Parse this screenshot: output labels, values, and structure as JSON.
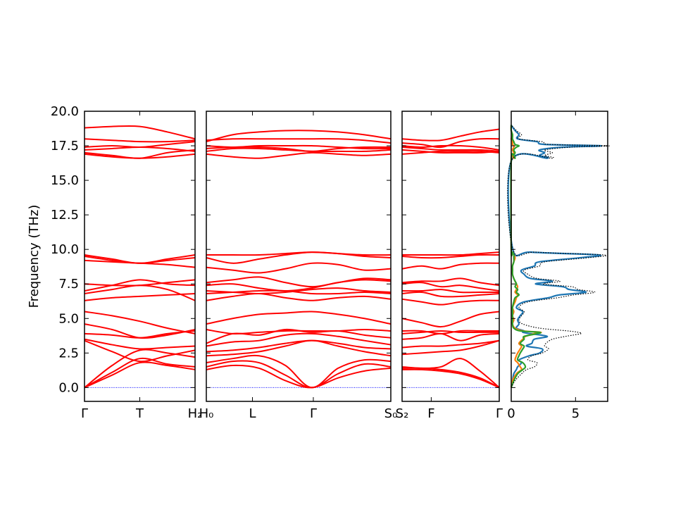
{
  "chart_data": [
    {
      "type": "line",
      "panel": "band-segment-1",
      "ylabel": "Frequency (THz)",
      "ylim": [
        -1.0,
        20.0
      ],
      "yticks": [
        "0.0",
        "2.5",
        "5.0",
        "7.5",
        "10.0",
        "12.5",
        "15.0",
        "17.5",
        "20.0"
      ],
      "xticklabels": [
        "Γ",
        "T",
        "H₂"
      ],
      "xtick_positions": [
        0,
        0.5,
        1
      ],
      "series": [
        {
          "values": [
            0.0,
            0.9,
            1.8,
            1.6,
            1.3
          ]
        },
        {
          "values": [
            0.0,
            1.1,
            2.1,
            1.7,
            1.5
          ]
        },
        {
          "values": [
            0.0,
            1.6,
            2.7,
            2.5,
            2.2
          ]
        },
        {
          "values": [
            3.4,
            2.6,
            1.9,
            2.3,
            2.7
          ]
        },
        {
          "values": [
            3.5,
            3.1,
            2.8,
            2.9,
            3.0
          ]
        },
        {
          "values": [
            3.9,
            3.8,
            3.6,
            3.9,
            4.1
          ]
        },
        {
          "values": [
            4.6,
            4.2,
            3.6,
            3.8,
            4.2
          ]
        },
        {
          "values": [
            5.5,
            5.2,
            4.8,
            4.3,
            3.9
          ]
        },
        {
          "values": [
            6.3,
            6.5,
            6.6,
            6.7,
            6.8
          ]
        },
        {
          "values": [
            6.8,
            7.1,
            7.4,
            7.1,
            6.3
          ]
        },
        {
          "values": [
            7.0,
            7.4,
            7.8,
            7.5,
            7.4
          ]
        },
        {
          "values": [
            7.5,
            7.4,
            7.4,
            7.6,
            7.8
          ]
        },
        {
          "values": [
            9.2,
            9.1,
            9.0,
            8.9,
            8.7
          ]
        },
        {
          "values": [
            9.6,
            9.3,
            9.0,
            9.3,
            9.6
          ]
        },
        {
          "values": [
            9.5,
            9.2,
            9.0,
            9.2,
            9.4
          ]
        },
        {
          "values": [
            16.9,
            16.7,
            16.6,
            16.7,
            16.9
          ]
        },
        {
          "values": [
            17.0,
            16.8,
            16.6,
            17.0,
            17.2
          ]
        },
        {
          "values": [
            17.2,
            17.3,
            17.4,
            17.3,
            17.1
          ]
        },
        {
          "values": [
            17.4,
            17.5,
            17.4,
            17.6,
            17.8
          ]
        },
        {
          "values": [
            18.0,
            17.9,
            17.8,
            17.8,
            17.9
          ]
        },
        {
          "values": [
            18.8,
            18.9,
            18.9,
            18.5,
            18.0
          ]
        }
      ]
    },
    {
      "type": "line",
      "panel": "band-segment-2",
      "ylim": [
        -1.0,
        20.0
      ],
      "xticklabels": [
        "H₀",
        "L",
        "Γ",
        "S₀"
      ],
      "xtick_positions": [
        0,
        0.25,
        0.58,
        1
      ],
      "series": [
        {
          "values": [
            1.3,
            1.6,
            1.4,
            0.5,
            0.0,
            0.7,
            1.2,
            1.4
          ]
        },
        {
          "values": [
            1.5,
            1.9,
            1.8,
            0.9,
            0.0,
            1.0,
            1.7,
            1.5
          ]
        },
        {
          "values": [
            1.8,
            2.1,
            2.3,
            1.6,
            0.0,
            1.4,
            2.0,
            1.9
          ]
        },
        {
          "values": [
            2.3,
            2.4,
            2.6,
            3.0,
            3.4,
            3.0,
            2.6,
            2.3
          ]
        },
        {
          "values": [
            2.6,
            2.7,
            2.9,
            3.2,
            3.4,
            3.2,
            2.9,
            2.8
          ]
        },
        {
          "values": [
            3.0,
            3.3,
            3.4,
            3.8,
            3.9,
            3.7,
            3.4,
            3.1
          ]
        },
        {
          "values": [
            3.2,
            3.9,
            3.8,
            4.2,
            4.0,
            4.1,
            3.8,
            3.6
          ]
        },
        {
          "values": [
            4.2,
            3.9,
            4.0,
            4.1,
            4.1,
            4.1,
            4.2,
            4.1
          ]
        },
        {
          "values": [
            4.6,
            5.0,
            5.3,
            5.4,
            5.5,
            5.3,
            5.0,
            4.6
          ]
        },
        {
          "values": [
            6.3,
            6.6,
            6.8,
            6.5,
            6.3,
            6.5,
            6.6,
            6.4
          ]
        },
        {
          "values": [
            6.8,
            6.9,
            7.0,
            7.0,
            6.8,
            6.8,
            6.9,
            6.8
          ]
        },
        {
          "values": [
            7.0,
            6.9,
            6.8,
            6.9,
            7.1,
            7.2,
            7.0,
            6.9
          ]
        },
        {
          "values": [
            7.4,
            7.5,
            7.2,
            7.0,
            7.2,
            7.6,
            7.8,
            7.7
          ]
        },
        {
          "values": [
            7.6,
            7.8,
            8.0,
            7.6,
            7.3,
            7.6,
            7.9,
            7.8
          ]
        },
        {
          "values": [
            8.7,
            8.5,
            8.3,
            8.6,
            9.0,
            8.9,
            8.5,
            8.6
          ]
        },
        {
          "values": [
            9.4,
            9.0,
            9.3,
            9.6,
            9.8,
            9.7,
            9.5,
            9.4
          ]
        },
        {
          "values": [
            9.6,
            9.6,
            9.6,
            9.7,
            9.8,
            9.7,
            9.6,
            9.6
          ]
        },
        {
          "values": [
            16.9,
            16.7,
            16.6,
            16.8,
            17.0,
            16.9,
            16.8,
            16.9
          ]
        },
        {
          "values": [
            17.1,
            17.3,
            17.3,
            17.2,
            17.1,
            17.1,
            17.1,
            17.2
          ]
        },
        {
          "values": [
            17.3,
            17.4,
            17.4,
            17.3,
            17.1,
            17.3,
            17.4,
            17.4
          ]
        },
        {
          "values": [
            17.5,
            17.4,
            17.5,
            17.5,
            17.5,
            17.4,
            17.3,
            17.3
          ]
        },
        {
          "values": [
            17.9,
            18.0,
            18.0,
            18.0,
            18.0,
            18.0,
            17.9,
            17.7
          ]
        },
        {
          "values": [
            17.8,
            18.3,
            18.5,
            18.6,
            18.6,
            18.5,
            18.3,
            18.0
          ]
        }
      ]
    },
    {
      "type": "line",
      "panel": "band-segment-3",
      "ylim": [
        -1.0,
        20.0
      ],
      "xticklabels": [
        "S₂",
        "F",
        "Γ"
      ],
      "xtick_positions": [
        0,
        0.3,
        1
      ],
      "series": [
        {
          "values": [
            1.3,
            1.3,
            1.2,
            1.0,
            0.6,
            0.0
          ]
        },
        {
          "values": [
            1.4,
            1.4,
            1.3,
            1.1,
            0.7,
            0.0
          ]
        },
        {
          "values": [
            1.5,
            1.4,
            1.5,
            2.1,
            1.2,
            0.0
          ]
        },
        {
          "values": [
            2.4,
            2.5,
            2.6,
            2.7,
            3.0,
            3.4
          ]
        },
        {
          "values": [
            2.9,
            3.0,
            3.0,
            3.1,
            3.2,
            3.4
          ]
        },
        {
          "values": [
            3.5,
            3.6,
            3.9,
            3.4,
            3.8,
            3.9
          ]
        },
        {
          "values": [
            3.9,
            4.0,
            4.1,
            4.0,
            4.0,
            4.0
          ]
        },
        {
          "values": [
            4.1,
            4.1,
            3.9,
            4.1,
            4.1,
            4.1
          ]
        },
        {
          "values": [
            5.0,
            4.7,
            4.4,
            4.8,
            5.3,
            5.5
          ]
        },
        {
          "values": [
            6.4,
            6.2,
            6.0,
            6.2,
            6.3,
            6.3
          ]
        },
        {
          "values": [
            6.8,
            6.9,
            6.6,
            6.6,
            6.7,
            6.8
          ]
        },
        {
          "values": [
            7.0,
            7.0,
            7.1,
            6.9,
            6.9,
            6.9
          ]
        },
        {
          "values": [
            7.5,
            7.6,
            7.3,
            7.4,
            7.2,
            7.0
          ]
        },
        {
          "values": [
            7.6,
            7.7,
            7.7,
            7.9,
            7.6,
            7.4
          ]
        },
        {
          "values": [
            8.6,
            8.8,
            8.6,
            8.9,
            9.0,
            9.0
          ]
        },
        {
          "values": [
            9.5,
            9.4,
            9.4,
            9.5,
            9.6,
            9.6
          ]
        },
        {
          "values": [
            9.6,
            9.6,
            9.6,
            9.6,
            9.7,
            9.8
          ]
        },
        {
          "values": [
            16.9,
            17.0,
            17.1,
            17.1,
            17.1,
            17.0
          ]
        },
        {
          "values": [
            17.2,
            17.1,
            17.0,
            17.0,
            17.0,
            17.1
          ]
        },
        {
          "values": [
            17.4,
            17.3,
            17.2,
            17.2,
            17.2,
            17.1
          ]
        },
        {
          "values": [
            17.5,
            17.4,
            17.5,
            17.5,
            17.4,
            17.2
          ]
        },
        {
          "values": [
            17.7,
            17.6,
            17.4,
            17.8,
            18.0,
            18.0
          ]
        },
        {
          "values": [
            18.0,
            17.9,
            17.9,
            18.2,
            18.5,
            18.7
          ]
        }
      ]
    },
    {
      "type": "line",
      "panel": "dos",
      "ylim": [
        -1.0,
        20.0
      ],
      "xlim": [
        0,
        7.5
      ],
      "xticklabels": [
        "0",
        "5"
      ],
      "xtick_values": [
        0,
        5
      ],
      "freq": [
        0.0,
        0.5,
        1.0,
        1.3,
        1.5,
        1.8,
        2.0,
        2.3,
        2.5,
        2.8,
        3.0,
        3.2,
        3.5,
        3.7,
        3.9,
        4.0,
        4.1,
        4.3,
        4.6,
        4.9,
        5.2,
        5.5,
        5.8,
        6.2,
        6.5,
        6.7,
        6.9,
        7.1,
        7.3,
        7.5,
        7.7,
        7.9,
        8.2,
        8.5,
        8.8,
        9.1,
        9.4,
        9.6,
        9.8,
        10.1,
        16.4,
        16.6,
        16.8,
        17.0,
        17.2,
        17.4,
        17.5,
        17.6,
        17.8,
        18.0,
        18.3,
        18.6,
        19.0
      ],
      "series": [
        {
          "name": "total",
          "values": [
            0.0,
            0.3,
            0.8,
            1.2,
            1.8,
            2.0,
            1.3,
            1.6,
            2.4,
            2.9,
            2.6,
            2.7,
            3.2,
            4.2,
            5.4,
            5.2,
            4.4,
            2.2,
            0.9,
            0.6,
            0.8,
            1.0,
            0.6,
            1.3,
            3.6,
            4.8,
            6.5,
            5.2,
            4.7,
            2.5,
            3.8,
            2.0,
            1.3,
            1.0,
            2.2,
            2.6,
            6.0,
            7.2,
            2.0,
            0.1,
            0.0,
            3.2,
            2.6,
            3.2,
            2.6,
            4.6,
            7.6,
            3.0,
            2.4,
            0.6,
            0.8,
            0.4,
            0.0
          ]
        },
        {
          "name": "series-blue",
          "values": [
            0.0,
            0.1,
            0.2,
            0.4,
            0.5,
            0.8,
            0.6,
            1.4,
            2.2,
            2.4,
            1.2,
            1.6,
            1.8,
            2.8,
            1.5,
            0.9,
            1.0,
            0.4,
            0.6,
            0.5,
            0.7,
            0.9,
            0.4,
            1.0,
            2.9,
            3.7,
            5.8,
            4.5,
            4.0,
            1.9,
            3.2,
            1.5,
            1.0,
            0.8,
            1.8,
            2.2,
            5.4,
            6.8,
            1.6,
            0.1,
            0.0,
            2.8,
            2.2,
            2.6,
            2.2,
            4.0,
            7.0,
            2.6,
            2.0,
            0.5,
            0.6,
            0.3,
            0.0
          ]
        },
        {
          "name": "series-orange",
          "values": [
            0.0,
            0.1,
            0.4,
            0.8,
            0.7,
            0.5,
            0.3,
            0.4,
            0.5,
            0.7,
            0.8,
            0.6,
            0.9,
            1.1,
            1.8,
            2.3,
            0.9,
            0.3,
            0.1,
            0.2,
            0.1,
            0.2,
            0.1,
            0.3,
            0.4,
            0.5,
            0.3,
            0.4,
            0.5,
            0.4,
            0.3,
            0.2,
            0.1,
            0.1,
            0.1,
            0.2,
            0.3,
            0.2,
            0.1,
            0.0,
            0.0,
            0.2,
            0.1,
            0.2,
            0.1,
            0.2,
            0.2,
            0.1,
            0.1,
            0.0,
            0.1,
            0.0,
            0.0
          ]
        },
        {
          "name": "series-green",
          "values": [
            0.0,
            0.2,
            0.5,
            0.9,
            1.1,
            0.9,
            0.5,
            0.6,
            0.7,
            0.9,
            1.0,
            0.7,
            1.0,
            1.0,
            2.0,
            2.2,
            0.7,
            0.2,
            0.1,
            0.1,
            0.1,
            0.1,
            0.1,
            0.2,
            0.3,
            0.6,
            0.4,
            0.5,
            0.3,
            0.4,
            0.3,
            0.2,
            0.1,
            0.1,
            0.1,
            0.2,
            0.2,
            0.2,
            0.1,
            0.0,
            0.0,
            0.3,
            0.2,
            0.3,
            0.2,
            0.4,
            0.6,
            0.3,
            0.2,
            0.1,
            0.1,
            0.0,
            0.0
          ]
        }
      ]
    }
  ],
  "colors": {
    "band": "#ff0000",
    "zero_line": "#0000ff",
    "dos_total": "#000000",
    "dos_blue": "#1f77b4",
    "dos_orange": "#ff7f0e",
    "dos_green": "#2ca02c"
  }
}
